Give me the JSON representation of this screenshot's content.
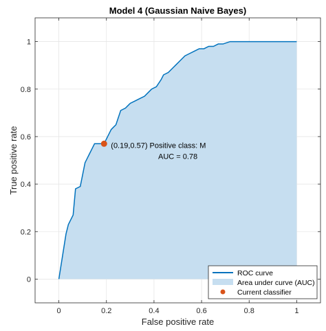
{
  "chart_data": {
    "type": "area",
    "title": "Model 4 (Gaussian Naive Bayes)",
    "xlabel": "False positive rate",
    "ylabel": "True positive rate",
    "xlim": [
      -0.1,
      1.1
    ],
    "ylim": [
      -0.1,
      1.1
    ],
    "xticks": [
      0,
      0.2,
      0.4,
      0.6,
      0.8,
      1
    ],
    "yticks": [
      0,
      0.2,
      0.4,
      0.6,
      0.8,
      1
    ],
    "xtick_labels": [
      "0",
      "0.2",
      "0.4",
      "0.6",
      "0.8",
      "1"
    ],
    "ytick_labels": [
      "0",
      "0.2",
      "0.4",
      "0.6",
      "0.8",
      "1"
    ],
    "grid": true,
    "legend_position": "bottom-right",
    "series": [
      {
        "name": "ROC curve",
        "color": "#0072BD",
        "x": [
          0,
          0.03,
          0.03,
          0.04,
          0.04,
          0.06,
          0.06,
          0.07,
          0.07,
          0.09,
          0.09,
          0.1,
          0.1,
          0.11,
          0.11,
          0.12,
          0.12,
          0.13,
          0.13,
          0.14,
          0.14,
          0.15,
          0.15,
          0.16,
          0.16,
          0.17,
          0.17,
          0.19,
          0.19,
          0.2,
          0.2,
          0.21,
          0.21,
          0.22,
          0.22,
          0.23,
          0.23,
          0.24,
          0.24,
          0.26,
          0.26,
          0.28,
          0.28,
          0.29,
          0.29,
          0.3,
          0.3,
          0.32,
          0.32,
          0.34,
          0.34,
          0.36,
          0.36,
          0.38,
          0.38,
          0.39,
          0.39,
          0.41,
          0.41,
          0.43,
          0.43,
          0.44,
          0.44,
          0.46,
          0.46,
          0.48,
          0.48,
          0.49,
          0.49,
          0.51,
          0.51,
          0.53,
          0.53,
          0.55,
          0.55,
          0.57,
          0.57,
          0.59,
          0.59,
          0.61,
          0.61,
          0.63,
          0.63,
          0.65,
          0.65,
          0.67,
          0.67,
          0.69,
          0.69,
          0.72,
          0.72,
          0.75,
          0.75,
          1.0
        ],
        "y": [
          0,
          0.19,
          0.19,
          0.23,
          0.23,
          0.27,
          0.27,
          0.38,
          0.38,
          0.39,
          0.39,
          0.44,
          0.44,
          0.49,
          0.49,
          0.51,
          0.51,
          0.53,
          0.53,
          0.55,
          0.55,
          0.57,
          0.57,
          0.57,
          0.57,
          0.57,
          0.57,
          0.57,
          0.57,
          0.59,
          0.59,
          0.61,
          0.61,
          0.63,
          0.63,
          0.64,
          0.64,
          0.65,
          0.65,
          0.71,
          0.71,
          0.72,
          0.72,
          0.73,
          0.73,
          0.74,
          0.74,
          0.75,
          0.75,
          0.76,
          0.76,
          0.77,
          0.77,
          0.79,
          0.79,
          0.8,
          0.8,
          0.81,
          0.81,
          0.84,
          0.84,
          0.86,
          0.86,
          0.87,
          0.87,
          0.89,
          0.89,
          0.9,
          0.9,
          0.92,
          0.92,
          0.94,
          0.94,
          0.95,
          0.95,
          0.96,
          0.96,
          0.97,
          0.97,
          0.97,
          0.97,
          0.98,
          0.98,
          0.98,
          0.98,
          0.99,
          0.99,
          0.99,
          0.99,
          1.0,
          1.0,
          1.0,
          1.0,
          1.0
        ]
      },
      {
        "name": "Area under curve (AUC)",
        "color": "#C6DEF0"
      },
      {
        "name": "Current classifier",
        "color": "#D95319",
        "x": [
          0.19
        ],
        "y": [
          0.57
        ]
      }
    ],
    "annotation": {
      "point_label": "(0.19,0.57)",
      "line1": "Positive class: M",
      "line2": "AUC = 0.78"
    }
  }
}
